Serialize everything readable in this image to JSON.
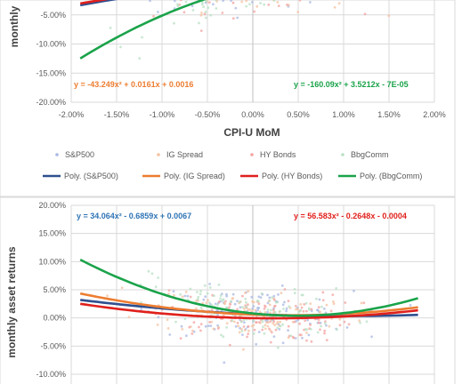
{
  "colors": {
    "sp500": "#2f4f8f",
    "ig": "#ed7d31",
    "hy": "#e0201c",
    "bbg": "#1aa34a",
    "sp500_pt": "#aab8e3",
    "ig_pt": "#f4c2a0",
    "hy_pt": "#f3a3a0",
    "bbg_pt": "#b8e0c4",
    "grid": "#d9d9d9",
    "axis": "#bfbfbf"
  },
  "chart_data": [
    {
      "type": "scatter",
      "xlabel": "CPI-U MoM",
      "ylabel": "monthly",
      "xlim": [
        -0.02,
        0.02
      ],
      "ylim": [
        -0.2,
        0.0
      ],
      "x_ticks": [
        "-2.00%",
        "-1.50%",
        "-1.00%",
        "-0.50%",
        "0.00%",
        "0.50%",
        "1.00%",
        "1.50%",
        "2.00%"
      ],
      "y_ticks": [
        "-5.00%",
        "-10.00%",
        "-15.00%",
        "-20.00%"
      ],
      "y_tick_values": [
        -0.05,
        -0.1,
        -0.15,
        -0.2
      ],
      "equations": [
        {
          "series": "IG Spread",
          "text": "y = -43.249x² + 0.0161x + 0.0016"
        },
        {
          "series": "BbgComm",
          "text": "y = -160.09x² + 3.5212x - 7E-05"
        }
      ],
      "series": [
        {
          "name": "S&P500",
          "trend": [
            -43.0,
            1.2,
            0.005
          ]
        },
        {
          "name": "IG Spread",
          "trend": [
            -43.249,
            0.0161,
            0.0016
          ]
        },
        {
          "name": "HY Bonds",
          "trend": [
            -48.0,
            0.9,
            0.004
          ]
        },
        {
          "name": "BbgComm",
          "trend": [
            -160.09,
            3.5212,
            -7e-05
          ]
        }
      ],
      "legend": [
        "S&P500",
        "IG Spread",
        "HY Bonds",
        "BbgComm",
        "Poly. (S&P500)",
        "Poly. (IG Spread)",
        "Poly. (HY Bonds)",
        "Poly. (BbgComm)"
      ]
    },
    {
      "type": "scatter",
      "xlabel": "",
      "ylabel": "monthly asset returns",
      "xlim": [
        -0.02,
        0.02
      ],
      "ylim": [
        -0.1,
        0.2
      ],
      "y_ticks": [
        "20.00%",
        "15.00%",
        "10.00%",
        "5.00%",
        "0.00%",
        "-5.00%",
        "-10.00%"
      ],
      "y_tick_values": [
        0.2,
        0.15,
        0.1,
        0.05,
        0.0,
        -0.05,
        -0.1
      ],
      "equations": [
        {
          "series": "S&P500",
          "text": "y = 34.064x² - 0.6859x + 0.0067"
        },
        {
          "series": "HY Bonds",
          "text": "y = 56.583x² - 0.2648x - 0.0004"
        }
      ],
      "series": [
        {
          "name": "S&P500",
          "trend": [
            34.064,
            -0.6859,
            0.0067
          ]
        },
        {
          "name": "IG Spread",
          "trend": [
            72.0,
            -0.6,
            0.006
          ]
        },
        {
          "name": "HY Bonds",
          "trend": [
            56.583,
            -0.2648,
            -0.0004
          ]
        },
        {
          "name": "BbgComm",
          "trend": [
            175.0,
            -1.7,
            0.008
          ]
        }
      ]
    }
  ]
}
